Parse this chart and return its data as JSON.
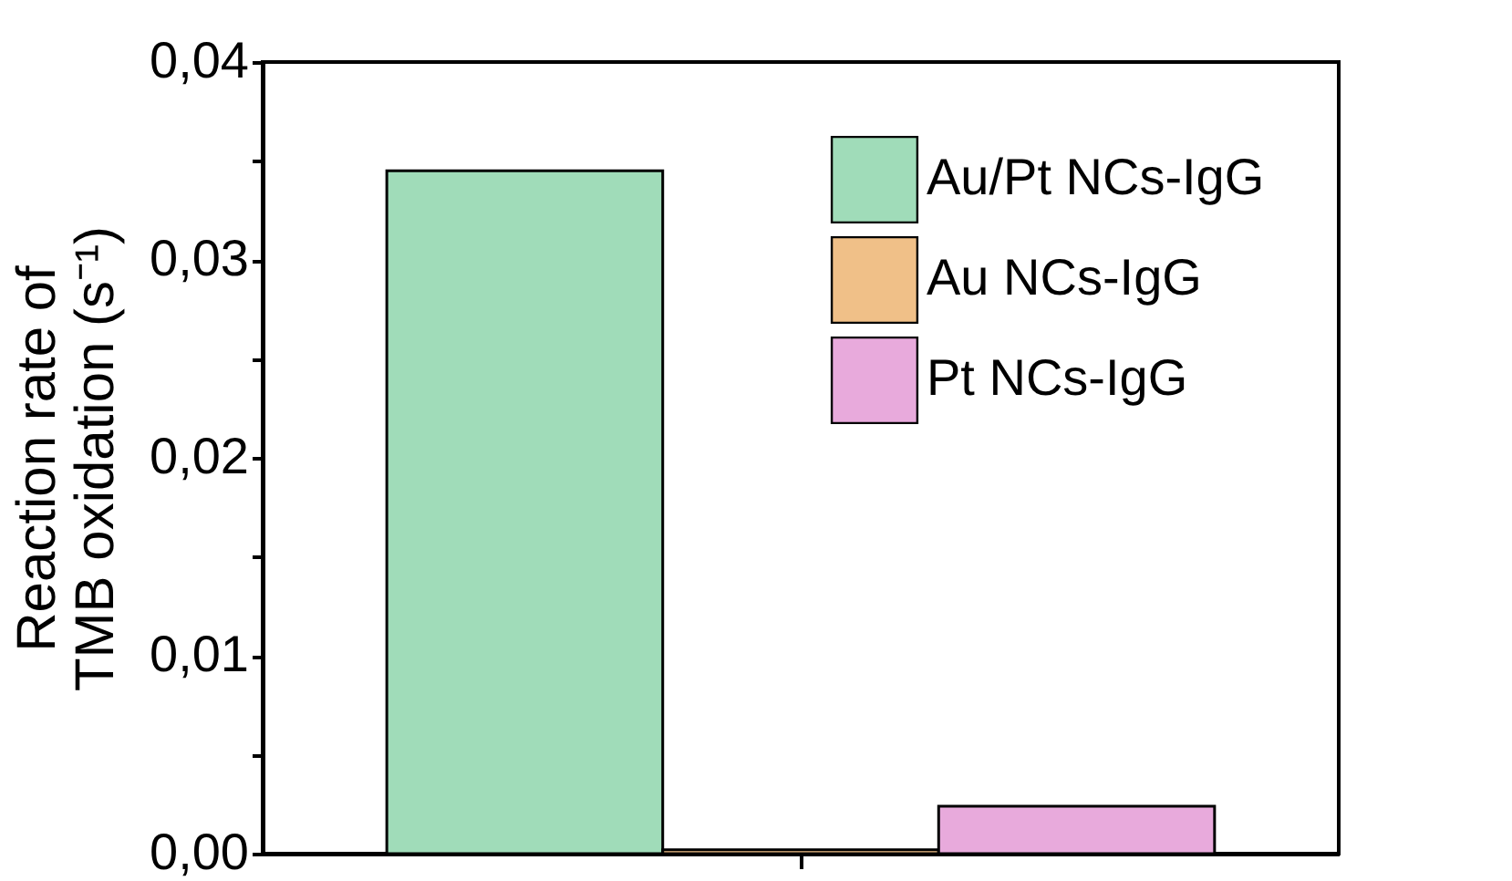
{
  "chart_data": {
    "type": "bar",
    "categories": [
      null
    ],
    "ylabel": "Reaction rate of\nTMB oxidation (s⁻¹)",
    "series": [
      {
        "name": "Au/Pt NCs-IgG",
        "color": "#a0dcb9",
        "values": [
          0.0345
        ]
      },
      {
        "name": "Au NCs-IgG",
        "color": "#f0c088",
        "values": [
          0.0002
        ]
      },
      {
        "name": "Pt NCs-IgG",
        "color": "#e8aadc",
        "values": [
          0.0024
        ]
      }
    ],
    "ylim": [
      0,
      0.04
    ],
    "yticks": [
      {
        "value": 0,
        "label": "0,00"
      },
      {
        "value": 0.005,
        "label": null
      },
      {
        "value": 0.01,
        "label": "0,01"
      },
      {
        "value": 0.015,
        "label": null
      },
      {
        "value": 0.02,
        "label": "0,02"
      },
      {
        "value": 0.025,
        "label": null
      },
      {
        "value": 0.03,
        "label": "0,03"
      },
      {
        "value": 0.035,
        "label": null
      },
      {
        "value": 0.04,
        "label": "0,04"
      }
    ],
    "tick_labels": "y",
    "legend": "top right",
    "grid": false
  }
}
